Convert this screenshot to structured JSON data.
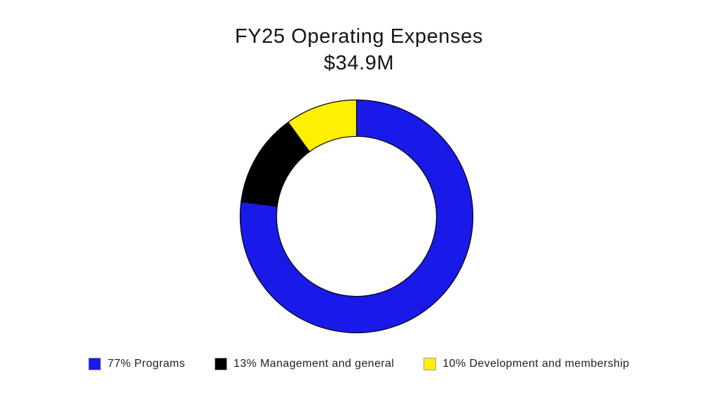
{
  "title": {
    "line1": "FY25 Operating Expenses",
    "line2": "$34.9M"
  },
  "chart_data": {
    "type": "pie",
    "donut": true,
    "title": "FY25 Operating Expenses",
    "subtitle": "$34.9M",
    "total_label": "$34.9M",
    "categories": [
      "Programs",
      "Management and general",
      "Development and membership"
    ],
    "values": [
      77,
      13,
      10
    ],
    "unit": "percent",
    "slices": [
      {
        "label": "Programs",
        "percent": 77,
        "color": "#1a1ae8",
        "legend_label": "77% Programs"
      },
      {
        "label": "Management and general",
        "percent": 13,
        "color": "#000000",
        "legend_label": "13% Management and general"
      },
      {
        "label": "Development and membership",
        "percent": 10,
        "color": "#ffef00",
        "legend_label": "10% Development and membership"
      }
    ],
    "start_angle_deg": 0,
    "direction": "clockwise",
    "inner_radius_ratio": 0.687,
    "outer_radius_px": 166,
    "stroke_color": "#000000",
    "stroke_width": 1.2,
    "hole_color": "#ffffff",
    "background": "#ffffff",
    "legend_position": "bottom"
  }
}
